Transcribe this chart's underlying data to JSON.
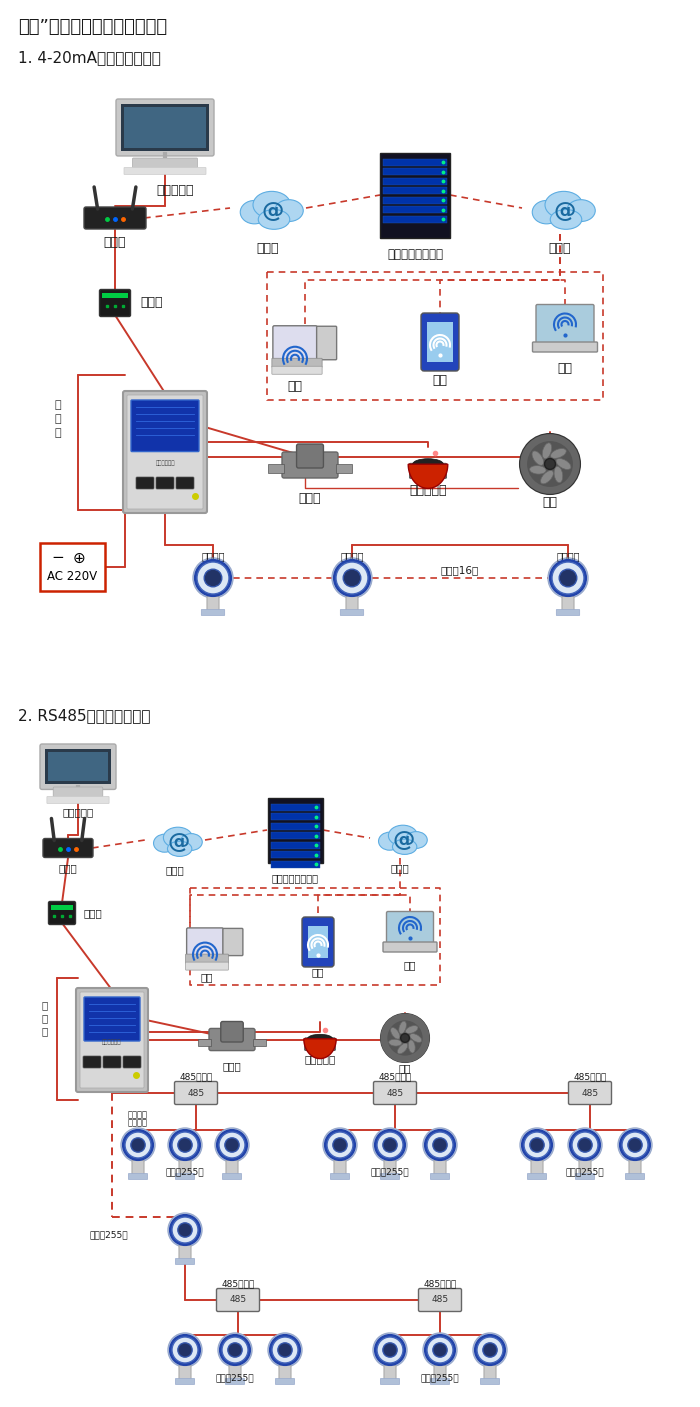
{
  "title1": "大众”系列带显示固定式检测仪",
  "section1": "1. 4-20mA信号连接系统图",
  "section2": "2. RS485信号连接系统图",
  "labels": {
    "computer": "单机版电脑",
    "router": "路由器",
    "internet1": "互联网",
    "server": "安帝尔网络服务器",
    "internet2": "互联网",
    "converter": "转换器",
    "pc": "电脑",
    "phone": "手机",
    "terminal": "终端",
    "valve": "电磁阀",
    "alarm": "声光报警器",
    "fan": "风机",
    "ac": "AC 220V",
    "signal_out": "信号输出",
    "connect16": "可连接16个",
    "comm_line1": "通",
    "comm_line2": "讯",
    "comm_line3": "线",
    "repeater": "485中继器",
    "connect255": "可连接255台"
  },
  "bg_color": "#ffffff",
  "red": "#c8392b",
  "dashed_red": "#c8392b",
  "text_dark": "#1a1a1a",
  "gray_mid": "#888888"
}
